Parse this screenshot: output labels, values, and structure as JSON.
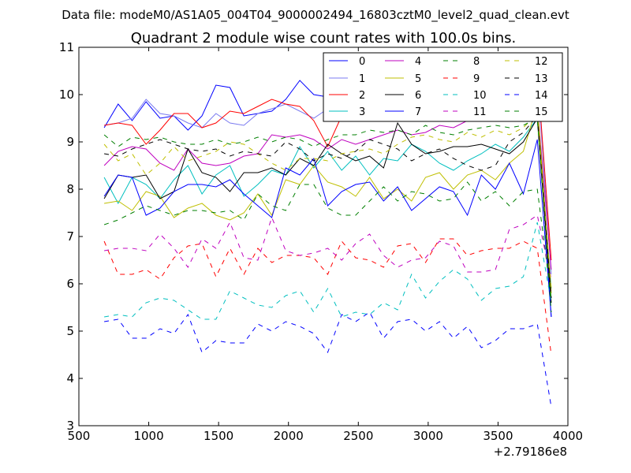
{
  "header": {
    "supertitle": "Data file: modeM0/AS1A05_004T04_9000002494_16803cztM0_level2_quad_clean.evt",
    "title": "Quadrant 2 module wise count rates with 100.0s bins."
  },
  "chart_data": {
    "type": "line",
    "xlim": [
      500,
      4000
    ],
    "ylim": [
      3,
      11
    ],
    "xticks": [
      500,
      1000,
      1500,
      2000,
      2500,
      3000,
      3500,
      4000
    ],
    "yticks": [
      3,
      4,
      5,
      6,
      7,
      8,
      9,
      10,
      11
    ],
    "x_offset_label": "+2.79186e8",
    "xlabel": "",
    "ylabel": "",
    "legend_location": "upper-right",
    "x": [
      681,
      781,
      881,
      981,
      1081,
      1181,
      1281,
      1381,
      1481,
      1581,
      1681,
      1781,
      1881,
      1981,
      2081,
      2181,
      2281,
      2381,
      2481,
      2581,
      2681,
      2781,
      2881,
      2981,
      3081,
      3181,
      3281,
      3381,
      3481,
      3581,
      3681,
      3781,
      3881
    ],
    "series": [
      {
        "name": "0",
        "color": "#0000ff",
        "dash": "solid",
        "values": [
          9.3,
          9.8,
          9.45,
          9.85,
          9.5,
          9.55,
          9.25,
          9.55,
          10.2,
          10.15,
          9.55,
          9.6,
          9.65,
          9.9,
          10.3,
          10.0,
          9.95,
          9.85,
          9.95,
          10.05,
          10.1,
          10.0,
          9.85,
          9.8,
          9.85,
          9.75,
          9.8,
          9.7,
          9.9,
          9.75,
          9.85,
          9.9,
          5.3
        ]
      },
      {
        "name": "1",
        "color": "#7b7bf0",
        "dash": "solid",
        "values": [
          9.35,
          9.4,
          9.5,
          9.9,
          9.6,
          9.55,
          9.4,
          9.3,
          9.6,
          9.4,
          9.35,
          9.6,
          9.7,
          9.8,
          9.65,
          9.5,
          9.7,
          10.1,
          10.2,
          10.1,
          10.5,
          10.0,
          10.2,
          10.4,
          10.1,
          10.2,
          10.3,
          10.0,
          10.1,
          10.0,
          10.3,
          10.4,
          6.2
        ]
      },
      {
        "name": "2",
        "color": "#ff0000",
        "dash": "solid",
        "values": [
          9.35,
          9.4,
          9.35,
          8.95,
          9.25,
          9.6,
          9.6,
          9.3,
          9.4,
          9.65,
          9.6,
          9.75,
          9.9,
          9.8,
          9.75,
          9.45,
          8.9,
          9.55,
          9.6,
          9.65,
          9.75,
          9.9,
          9.8,
          9.9,
          9.75,
          9.85,
          9.9,
          9.8,
          10.05,
          9.9,
          10.1,
          10.5,
          6.5
        ]
      },
      {
        "name": "3",
        "color": "#00bfbf",
        "dash": "solid",
        "values": [
          8.25,
          7.7,
          8.25,
          8.1,
          7.8,
          8.2,
          8.5,
          7.9,
          8.3,
          8.5,
          7.85,
          8.1,
          8.4,
          8.3,
          8.9,
          8.45,
          8.8,
          8.4,
          8.7,
          8.3,
          8.65,
          8.6,
          8.95,
          8.8,
          8.55,
          8.4,
          8.6,
          8.75,
          8.95,
          8.8,
          9.1,
          9.5,
          5.9
        ]
      },
      {
        "name": "4",
        "color": "#bf00bf",
        "dash": "solid",
        "values": [
          8.5,
          8.8,
          8.9,
          8.85,
          8.55,
          8.4,
          8.85,
          8.55,
          8.5,
          8.55,
          8.7,
          8.75,
          9.15,
          9.1,
          9.15,
          9.05,
          8.85,
          9.05,
          8.95,
          9.05,
          9.15,
          9.25,
          9.15,
          9.2,
          9.35,
          9.3,
          9.45,
          9.5,
          9.55,
          9.65,
          9.5,
          9.8,
          6.3
        ]
      },
      {
        "name": "5",
        "color": "#bfbf00",
        "dash": "solid",
        "values": [
          7.7,
          7.75,
          7.55,
          7.95,
          7.85,
          7.4,
          7.6,
          7.7,
          7.45,
          7.35,
          7.5,
          7.9,
          7.45,
          8.2,
          8.1,
          8.5,
          8.15,
          8.05,
          7.85,
          8.25,
          7.8,
          8.0,
          7.75,
          8.25,
          8.35,
          8.0,
          8.3,
          8.4,
          8.2,
          8.55,
          8.8,
          9.8,
          5.8
        ]
      },
      {
        "name": "6",
        "color": "#000000",
        "dash": "solid",
        "values": [
          7.8,
          8.3,
          8.25,
          8.3,
          7.8,
          7.95,
          8.85,
          8.35,
          8.25,
          7.95,
          8.35,
          8.35,
          8.45,
          8.3,
          8.65,
          8.5,
          8.95,
          8.75,
          8.6,
          8.7,
          8.45,
          9.4,
          8.95,
          8.75,
          8.8,
          8.9,
          8.9,
          8.95,
          8.85,
          8.75,
          9.0,
          9.5,
          5.6
        ]
      },
      {
        "name": "7",
        "color": "#0000ff",
        "dash": "solid",
        "values": [
          7.85,
          8.3,
          8.25,
          7.45,
          7.6,
          7.95,
          8.1,
          8.1,
          8.05,
          8.2,
          7.9,
          7.65,
          7.4,
          8.45,
          8.3,
          8.65,
          7.65,
          7.95,
          8.1,
          8.15,
          7.75,
          8.05,
          7.55,
          7.8,
          8.05,
          7.95,
          7.45,
          8.3,
          8.0,
          8.55,
          7.9,
          9.05,
          5.3
        ]
      },
      {
        "name": "8",
        "color": "#007f00",
        "dash": "dashed",
        "values": [
          7.25,
          7.35,
          7.5,
          7.65,
          7.55,
          7.45,
          7.55,
          7.55,
          7.5,
          7.55,
          7.35,
          7.9,
          7.65,
          7.55,
          8.1,
          8.1,
          7.6,
          7.45,
          7.45,
          7.75,
          8.05,
          7.75,
          7.95,
          7.9,
          7.75,
          7.8,
          8.15,
          7.75,
          7.95,
          7.65,
          7.95,
          8.0,
          5.7
        ]
      },
      {
        "name": "9",
        "color": "#ff0000",
        "dash": "dashed",
        "values": [
          6.9,
          6.2,
          6.2,
          6.3,
          6.1,
          6.55,
          6.8,
          6.85,
          6.15,
          6.75,
          6.2,
          6.75,
          6.45,
          6.6,
          6.6,
          6.55,
          6.2,
          6.9,
          6.55,
          6.5,
          6.35,
          6.8,
          6.85,
          6.45,
          6.95,
          6.95,
          6.6,
          6.7,
          6.75,
          6.75,
          6.9,
          6.75,
          4.5
        ]
      },
      {
        "name": "10",
        "color": "#00bfbf",
        "dash": "dashed",
        "values": [
          5.3,
          5.35,
          5.3,
          5.6,
          5.7,
          5.65,
          5.45,
          5.25,
          5.25,
          5.85,
          5.7,
          5.55,
          5.5,
          5.75,
          5.85,
          5.4,
          5.9,
          5.3,
          5.4,
          5.35,
          5.6,
          5.45,
          6.2,
          5.7,
          6.05,
          6.3,
          6.1,
          5.65,
          5.9,
          5.95,
          6.15,
          7.3,
          5.6
        ]
      },
      {
        "name": "11",
        "color": "#bf00bf",
        "dash": "dashed",
        "values": [
          6.7,
          6.75,
          6.75,
          6.7,
          7.05,
          6.75,
          6.35,
          6.95,
          6.75,
          7.3,
          6.55,
          6.5,
          7.4,
          6.7,
          6.6,
          6.65,
          6.75,
          6.5,
          6.85,
          7.05,
          6.6,
          6.35,
          6.5,
          6.55,
          6.9,
          6.8,
          6.25,
          6.25,
          6.3,
          7.15,
          7.25,
          7.45,
          6.1
        ]
      },
      {
        "name": "12",
        "color": "#bfbf00",
        "dash": "dashed",
        "values": [
          8.95,
          8.6,
          8.75,
          8.3,
          8.55,
          8.9,
          8.6,
          8.7,
          8.8,
          9.0,
          8.95,
          8.75,
          8.55,
          8.4,
          8.65,
          8.65,
          8.6,
          8.75,
          8.8,
          8.85,
          8.75,
          8.95,
          9.1,
          9.15,
          9.05,
          9.0,
          9.2,
          9.1,
          9.25,
          9.15,
          9.3,
          9.6,
          5.9
        ]
      },
      {
        "name": "13",
        "color": "#000000",
        "dash": "dashed",
        "values": [
          8.75,
          8.7,
          8.85,
          8.95,
          9.05,
          8.95,
          8.85,
          8.8,
          8.85,
          8.7,
          8.8,
          8.75,
          8.7,
          9.0,
          8.85,
          8.6,
          8.75,
          8.65,
          8.8,
          9.05,
          8.95,
          8.85,
          8.6,
          8.75,
          8.85,
          8.65,
          8.5,
          8.4,
          8.5,
          9.0,
          9.2,
          9.55,
          5.7
        ]
      },
      {
        "name": "14",
        "color": "#0000ff",
        "dash": "dashed",
        "values": [
          5.2,
          5.25,
          4.85,
          4.85,
          5.05,
          4.95,
          5.35,
          4.55,
          4.8,
          4.75,
          4.75,
          5.15,
          5.0,
          5.2,
          5.1,
          4.95,
          4.55,
          5.35,
          5.2,
          5.4,
          4.85,
          5.2,
          5.25,
          5.0,
          5.2,
          4.85,
          5.1,
          4.65,
          4.8,
          5.05,
          5.05,
          5.15,
          3.4
        ]
      },
      {
        "name": "15",
        "color": "#007f00",
        "dash": "dashed",
        "values": [
          9.15,
          8.9,
          9.1,
          9.05,
          9.1,
          9.0,
          8.95,
          8.95,
          9.05,
          8.95,
          9.0,
          9.1,
          9.0,
          9.1,
          9.05,
          8.9,
          9.05,
          9.15,
          9.15,
          9.25,
          9.2,
          9.25,
          9.15,
          9.35,
          9.2,
          9.15,
          9.25,
          9.3,
          9.35,
          9.3,
          9.35,
          9.5,
          5.4
        ]
      }
    ]
  }
}
